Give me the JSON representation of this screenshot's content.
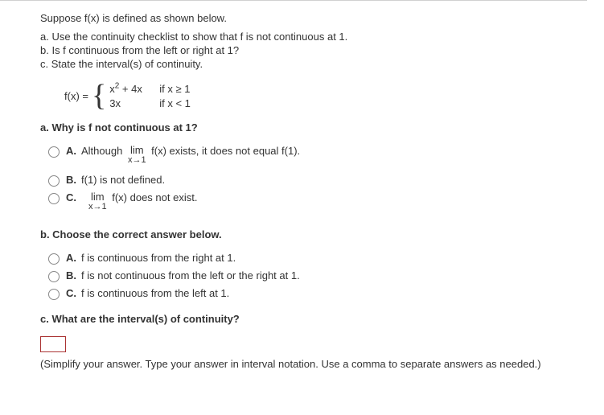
{
  "intro": "Suppose f(x) is defined as shown below.",
  "parts": {
    "a": "a. Use the continuity checklist to show that f is not continuous at 1.",
    "b": "b. Is f continuous from the left or right at 1?",
    "c": "c. State the interval(s) of continuity."
  },
  "piecewise": {
    "prefix": "f(x) =",
    "pieces": [
      {
        "expr_html": "x<sup>2</sup> + 4x",
        "cond": "if x ≥ 1"
      },
      {
        "expr_html": "3x",
        "cond": "if x < 1"
      }
    ]
  },
  "q_a": {
    "prompt": "a. Why is f not continuous at 1?",
    "options": {
      "A": {
        "pre": "Although  ",
        "lim_top": "lim",
        "lim_sub": "x→1",
        "post": " f(x) exists, it does not equal f(1)."
      },
      "B": {
        "text": "f(1) is not defined."
      },
      "C": {
        "pre": "",
        "lim_top": "lim",
        "lim_sub": "x→1",
        "post": " f(x) does not exist."
      }
    }
  },
  "q_b": {
    "prompt": "b. Choose the correct answer below.",
    "options": {
      "A": "f is continuous from the right at 1.",
      "B": "f is not continuous from the left or the right at 1.",
      "C": "f is continuous from the left at 1."
    }
  },
  "q_c": {
    "prompt": "c. What are the interval(s) of continuity?",
    "note": "(Simplify your answer. Type your answer in interval notation. Use a comma to separate answers as needed.)"
  }
}
